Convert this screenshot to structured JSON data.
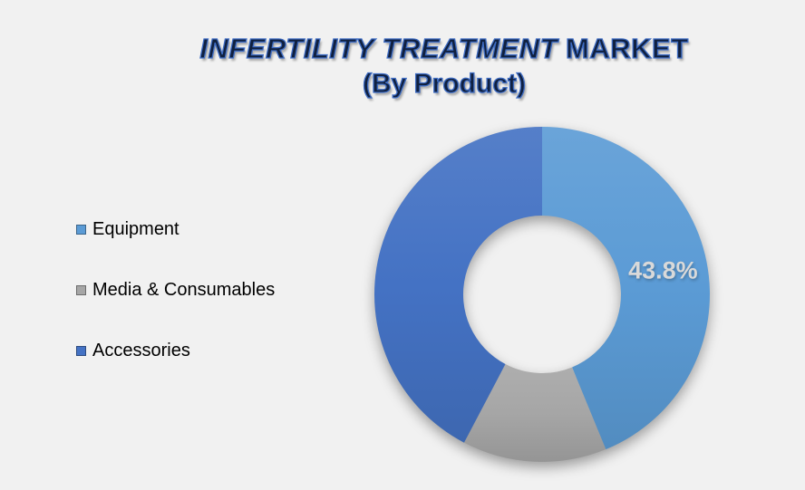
{
  "page": {
    "background": "#F1F1F1"
  },
  "title": {
    "line1_italic": "INFERTILITY TREATMENT",
    "line1_regular": "MARKET",
    "line2": "(By Product)",
    "text_color": "#10203F",
    "outline_color": "#3E6CC3"
  },
  "legend": {
    "position": "left",
    "items": [
      {
        "label": "Equipment",
        "color": "#5B9BD5"
      },
      {
        "label": "Media & Consumables",
        "color": "#A6A6A6"
      },
      {
        "label": "Accessories",
        "color": "#4472C4"
      }
    ]
  },
  "chart_data": {
    "type": "pie",
    "subtype": "donut",
    "title": "INFERTILITY TREATMENT MARKET (By Product)",
    "categories": [
      "Equipment",
      "Media & Consumables",
      "Accessories"
    ],
    "values": [
      43.8,
      13.9,
      42.3
    ],
    "data_labels": [
      "43.8%",
      "",
      ""
    ],
    "colors": [
      "#5B9BD5",
      "#A6A6A6",
      "#4472C4"
    ],
    "label_color": "#D9D9D9",
    "hole_ratio": 0.47,
    "start_angle": 0,
    "direction": "clockwise",
    "legend_position": "left",
    "grid": false
  }
}
